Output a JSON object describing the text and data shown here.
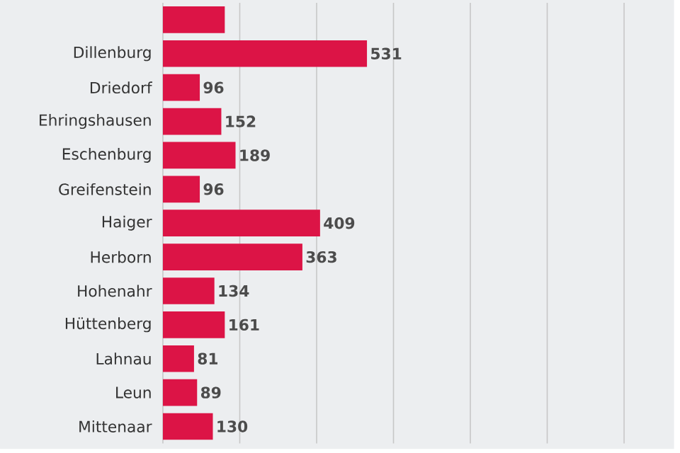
{
  "chart_data": {
    "type": "bar",
    "orientation": "horizontal",
    "categories": [
      null,
      "Dillenburg",
      "Driedorf",
      "Ehringshausen",
      "Eschenburg",
      "Greifenstein",
      "Haiger",
      "Herborn",
      "Hohenahr",
      "Hüttenberg",
      "Lahnau",
      "Leun",
      "Mittenaar"
    ],
    "values": [
      161,
      531,
      96,
      152,
      189,
      96,
      409,
      363,
      134,
      161,
      81,
      89,
      130
    ],
    "value_labels": [
      null,
      "531",
      "96",
      "152",
      "189",
      "96",
      "409",
      "363",
      "134",
      "161",
      "81",
      "89",
      "130"
    ],
    "color": "#dc1446",
    "xlim": [
      0,
      1330
    ],
    "xticks": [
      {
        "value": 0,
        "label": null
      },
      {
        "value": 200,
        "label": null
      },
      {
        "value": 400,
        "label": null
      },
      {
        "value": 600,
        "label": null
      },
      {
        "value": 800,
        "label": null
      },
      {
        "value": 1000,
        "label": null
      },
      {
        "value": 1200,
        "label": null
      }
    ],
    "grid": "x",
    "tick_labels": "y"
  }
}
